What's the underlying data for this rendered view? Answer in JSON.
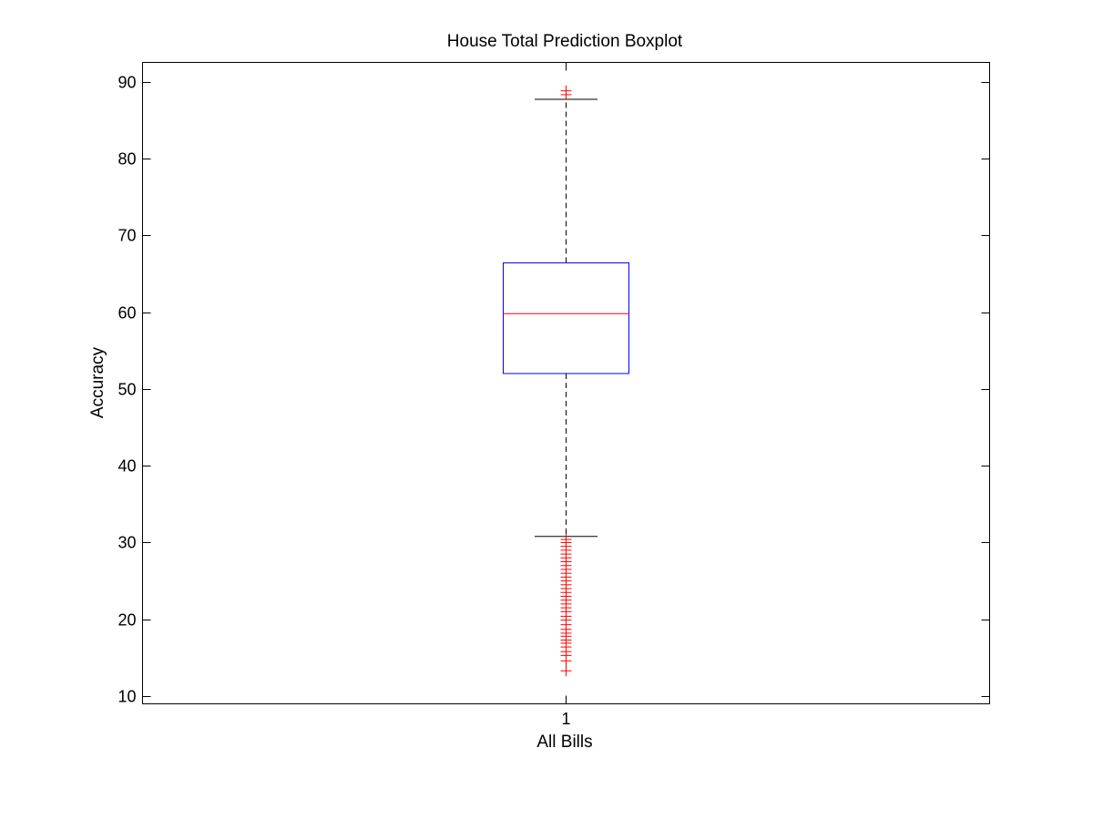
{
  "chart_data": {
    "type": "boxplot",
    "title": "House Total Prediction Boxplot",
    "xlabel": "All Bills",
    "ylabel": "Accuracy",
    "categories": [
      "1"
    ],
    "ylim": [
      9,
      92.5
    ],
    "yticks": [
      10,
      20,
      30,
      40,
      50,
      60,
      70,
      80,
      90
    ],
    "grid": false,
    "box": {
      "whisker_low": 30.8,
      "q1": 52.0,
      "median": 59.8,
      "q3": 66.4,
      "whisker_high": 87.7
    },
    "outliers": [
      88.3,
      88.8,
      13.3,
      14.6,
      15.3,
      15.8,
      16.4,
      16.9,
      17.3,
      17.8,
      18.2,
      18.7,
      19.3,
      19.9,
      20.4,
      21.0,
      21.5,
      22.0,
      22.5,
      23.0,
      23.5,
      24.0,
      24.5,
      25.0,
      25.5,
      26.0,
      26.5,
      27.0,
      27.5,
      28.0,
      28.5,
      29.0,
      29.5,
      30.0,
      30.4
    ],
    "colors": {
      "box": "#0000ff",
      "median": "#ff0000",
      "whisker": "#000000",
      "outlier": "#ff0000"
    }
  }
}
